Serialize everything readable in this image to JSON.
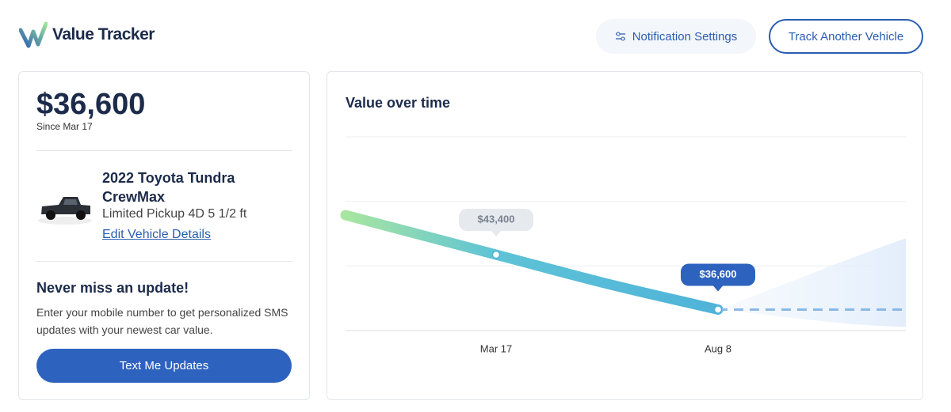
{
  "header": {
    "logo": "Value Tracker",
    "buttons": [
      "Notification Settings",
      "Track Another Vehicle"
    ]
  },
  "summary": {
    "value": "$36,600",
    "since": "Since Mar 17",
    "vehicle": {
      "title": "2022 Toyota Tundra CrewMax",
      "trim": "Limited Pickup 4D 5 1/2 ft",
      "link": "Edit Vehicle Details"
    },
    "promo": {
      "title": "Never miss an update!",
      "text": "Enter your mobile number to get personalized SMS updates with your newest car value.",
      "button": "Text Me Updates"
    }
  },
  "chart_data": {
    "type": "line",
    "title": "Value over time",
    "categories": [
      null,
      "Mar 17",
      null,
      "Aug 8",
      null
    ],
    "series": [
      {
        "color": "#4fb3d9",
        "values": [
          48300,
          43400,
          39800,
          36600,
          null
        ],
        "value_labels": [
          null,
          "$43,400",
          null,
          "$36,600",
          null
        ]
      },
      {
        "color": "#8ab8e6",
        "dashed": true,
        "values": [
          null,
          null,
          null,
          36600,
          36600
        ]
      }
    ],
    "ylim": [
      34000,
      58000
    ],
    "yticks": [
      34000,
      42000,
      50000,
      58000
    ],
    "grid": true
  }
}
